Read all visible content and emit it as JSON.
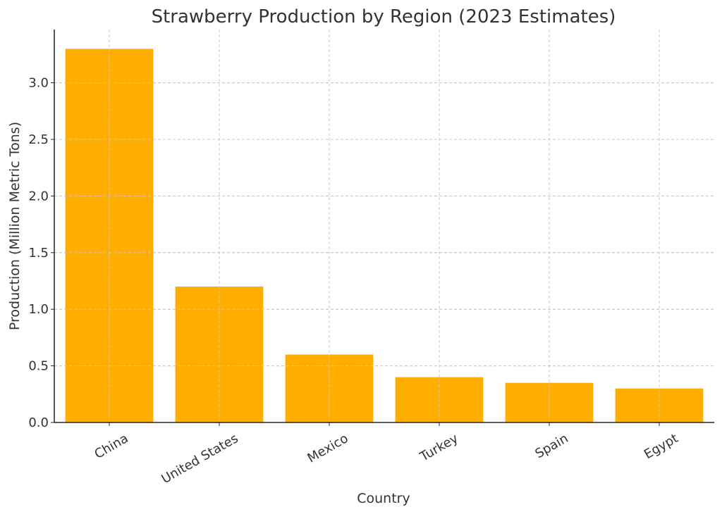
{
  "chart_data": {
    "type": "bar",
    "title": "Strawberry Production by Region (2023 Estimates)",
    "xlabel": "Country",
    "ylabel": "Production (Million Metric Tons)",
    "categories": [
      "China",
      "United States",
      "Mexico",
      "Turkey",
      "Spain",
      "Egypt"
    ],
    "values": [
      3.3,
      1.2,
      0.6,
      0.4,
      0.35,
      0.3
    ],
    "ylim": [
      0,
      3.47
    ],
    "yticks": [
      0.0,
      0.5,
      1.0,
      1.5,
      2.0,
      2.5,
      3.0
    ],
    "ytick_labels": [
      "0.0",
      "0.5",
      "1.0",
      "1.5",
      "2.0",
      "2.5",
      "3.0"
    ],
    "grid": true,
    "bar_color": "#FFAE00"
  }
}
